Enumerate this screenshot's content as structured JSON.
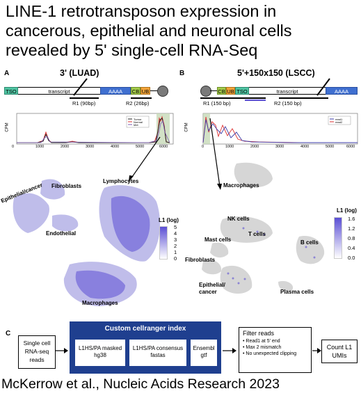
{
  "title": "LINE-1 retrotransposon expression in cancerous, epithelial and neuronal cells revealed by 5' single-cell RNA-Seq",
  "citation": "McKerrow et al., Nucleic Acids Research 2023",
  "panelA": {
    "letter": "A",
    "subtitle": "3' (LUAD)",
    "segments": {
      "tso": "TSO",
      "transcript": "transcript",
      "aaaa": "AAAA",
      "cb": "CB",
      "ub": "UB"
    },
    "reads": {
      "r1": "R1 (90bp)",
      "r2": "R2 (26bp)"
    },
    "plot": {
      "ylabel": "CPM",
      "xticks": [
        "0",
        "1000",
        "2000",
        "3000",
        "4000",
        "5000",
        "6000"
      ],
      "legend": [
        "Tumor",
        "Normal",
        "Met"
      ]
    },
    "clusters": {
      "fibroblasts": "Fibroblasts",
      "lymphocytes": "Lymphocytes",
      "epithelial": "Epithelial/cancer",
      "endothelial": "Endothelial",
      "macrophages": "Macrophages"
    },
    "legend": {
      "title": "L1 (log)",
      "ticks": [
        "5",
        "4",
        "3",
        "2",
        "1",
        "0"
      ]
    }
  },
  "panelB": {
    "letter": "B",
    "subtitle": "5'+150x150 (LSCC)",
    "segments": {
      "tso": "TSO",
      "cb": "CB",
      "ub": "UB",
      "tso2": "TSO",
      "transcript": "transcript",
      "aaaa": "AAAA"
    },
    "reads": {
      "r1": "R1 (150 bp)",
      "r2": "R2 (150 bp)"
    },
    "plot": {
      "ylabel": "CPM",
      "xticks": [
        "0",
        "1000",
        "2000",
        "3000",
        "4000",
        "5000",
        "6000"
      ],
      "legend": [
        "read1",
        "read2"
      ]
    },
    "clusters": {
      "macrophages": "Macrophages",
      "nk": "NK cells",
      "t": "T cells",
      "mast": "Mast cells",
      "b": "B cells",
      "fibroblasts": "Fibroblasts",
      "epithelial": "Epithelial/\ncancer",
      "plasma": "Plasma cells"
    },
    "legend": {
      "title": "L1 (log)",
      "ticks": [
        "1.6",
        "1.2",
        "0.8",
        "0.4",
        "0.0"
      ]
    }
  },
  "panelC": {
    "letter": "C",
    "input": "Single cell RNA-seq reads",
    "index_title": "Custom cellranger index",
    "index_items": [
      "L1HS/PA masked hg38",
      "L1HS/PA consensus fastas",
      "Ensembl gtf"
    ],
    "filter_title": "Filter reads",
    "filter_items": [
      "Read1 at 5' end",
      "Max 2 mismatch",
      "No unexpected clipping"
    ],
    "count": "Count L1 UMIs"
  },
  "colors": {
    "tso": "#4fc3a1",
    "aaaa": "#3f6fd0",
    "cb": "#a3c94a",
    "ub": "#f2a33a",
    "index_box": "#1f3f8f",
    "umap_purple": "#5b4fd4",
    "umap_grey": "#d6d6d6"
  }
}
